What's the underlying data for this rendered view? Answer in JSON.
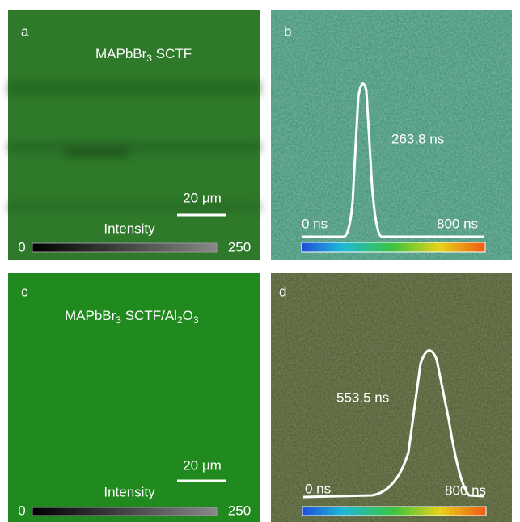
{
  "panels": [
    {
      "label": "a",
      "title": [
        "MAPbBr",
        "3",
        " SCTF"
      ],
      "scale_bar": "20 μm",
      "colorbar": {
        "title": "Intensity",
        "min": 0,
        "max": 250
      }
    },
    {
      "label": "b",
      "lifetime": "263.8 ns",
      "axis_start": "0 ns",
      "axis_end": "800 ns"
    },
    {
      "label": "c",
      "title": [
        "MAPbBr",
        "3",
        " SCTF/Al",
        "2",
        "O",
        "3"
      ],
      "scale_bar": "20 μm",
      "colorbar": {
        "title": "Intensity",
        "min": 0,
        "max": 250
      }
    },
    {
      "label": "d",
      "lifetime": "553.5 ns",
      "axis_start": "0 ns",
      "axis_end": "800 ns"
    }
  ]
}
